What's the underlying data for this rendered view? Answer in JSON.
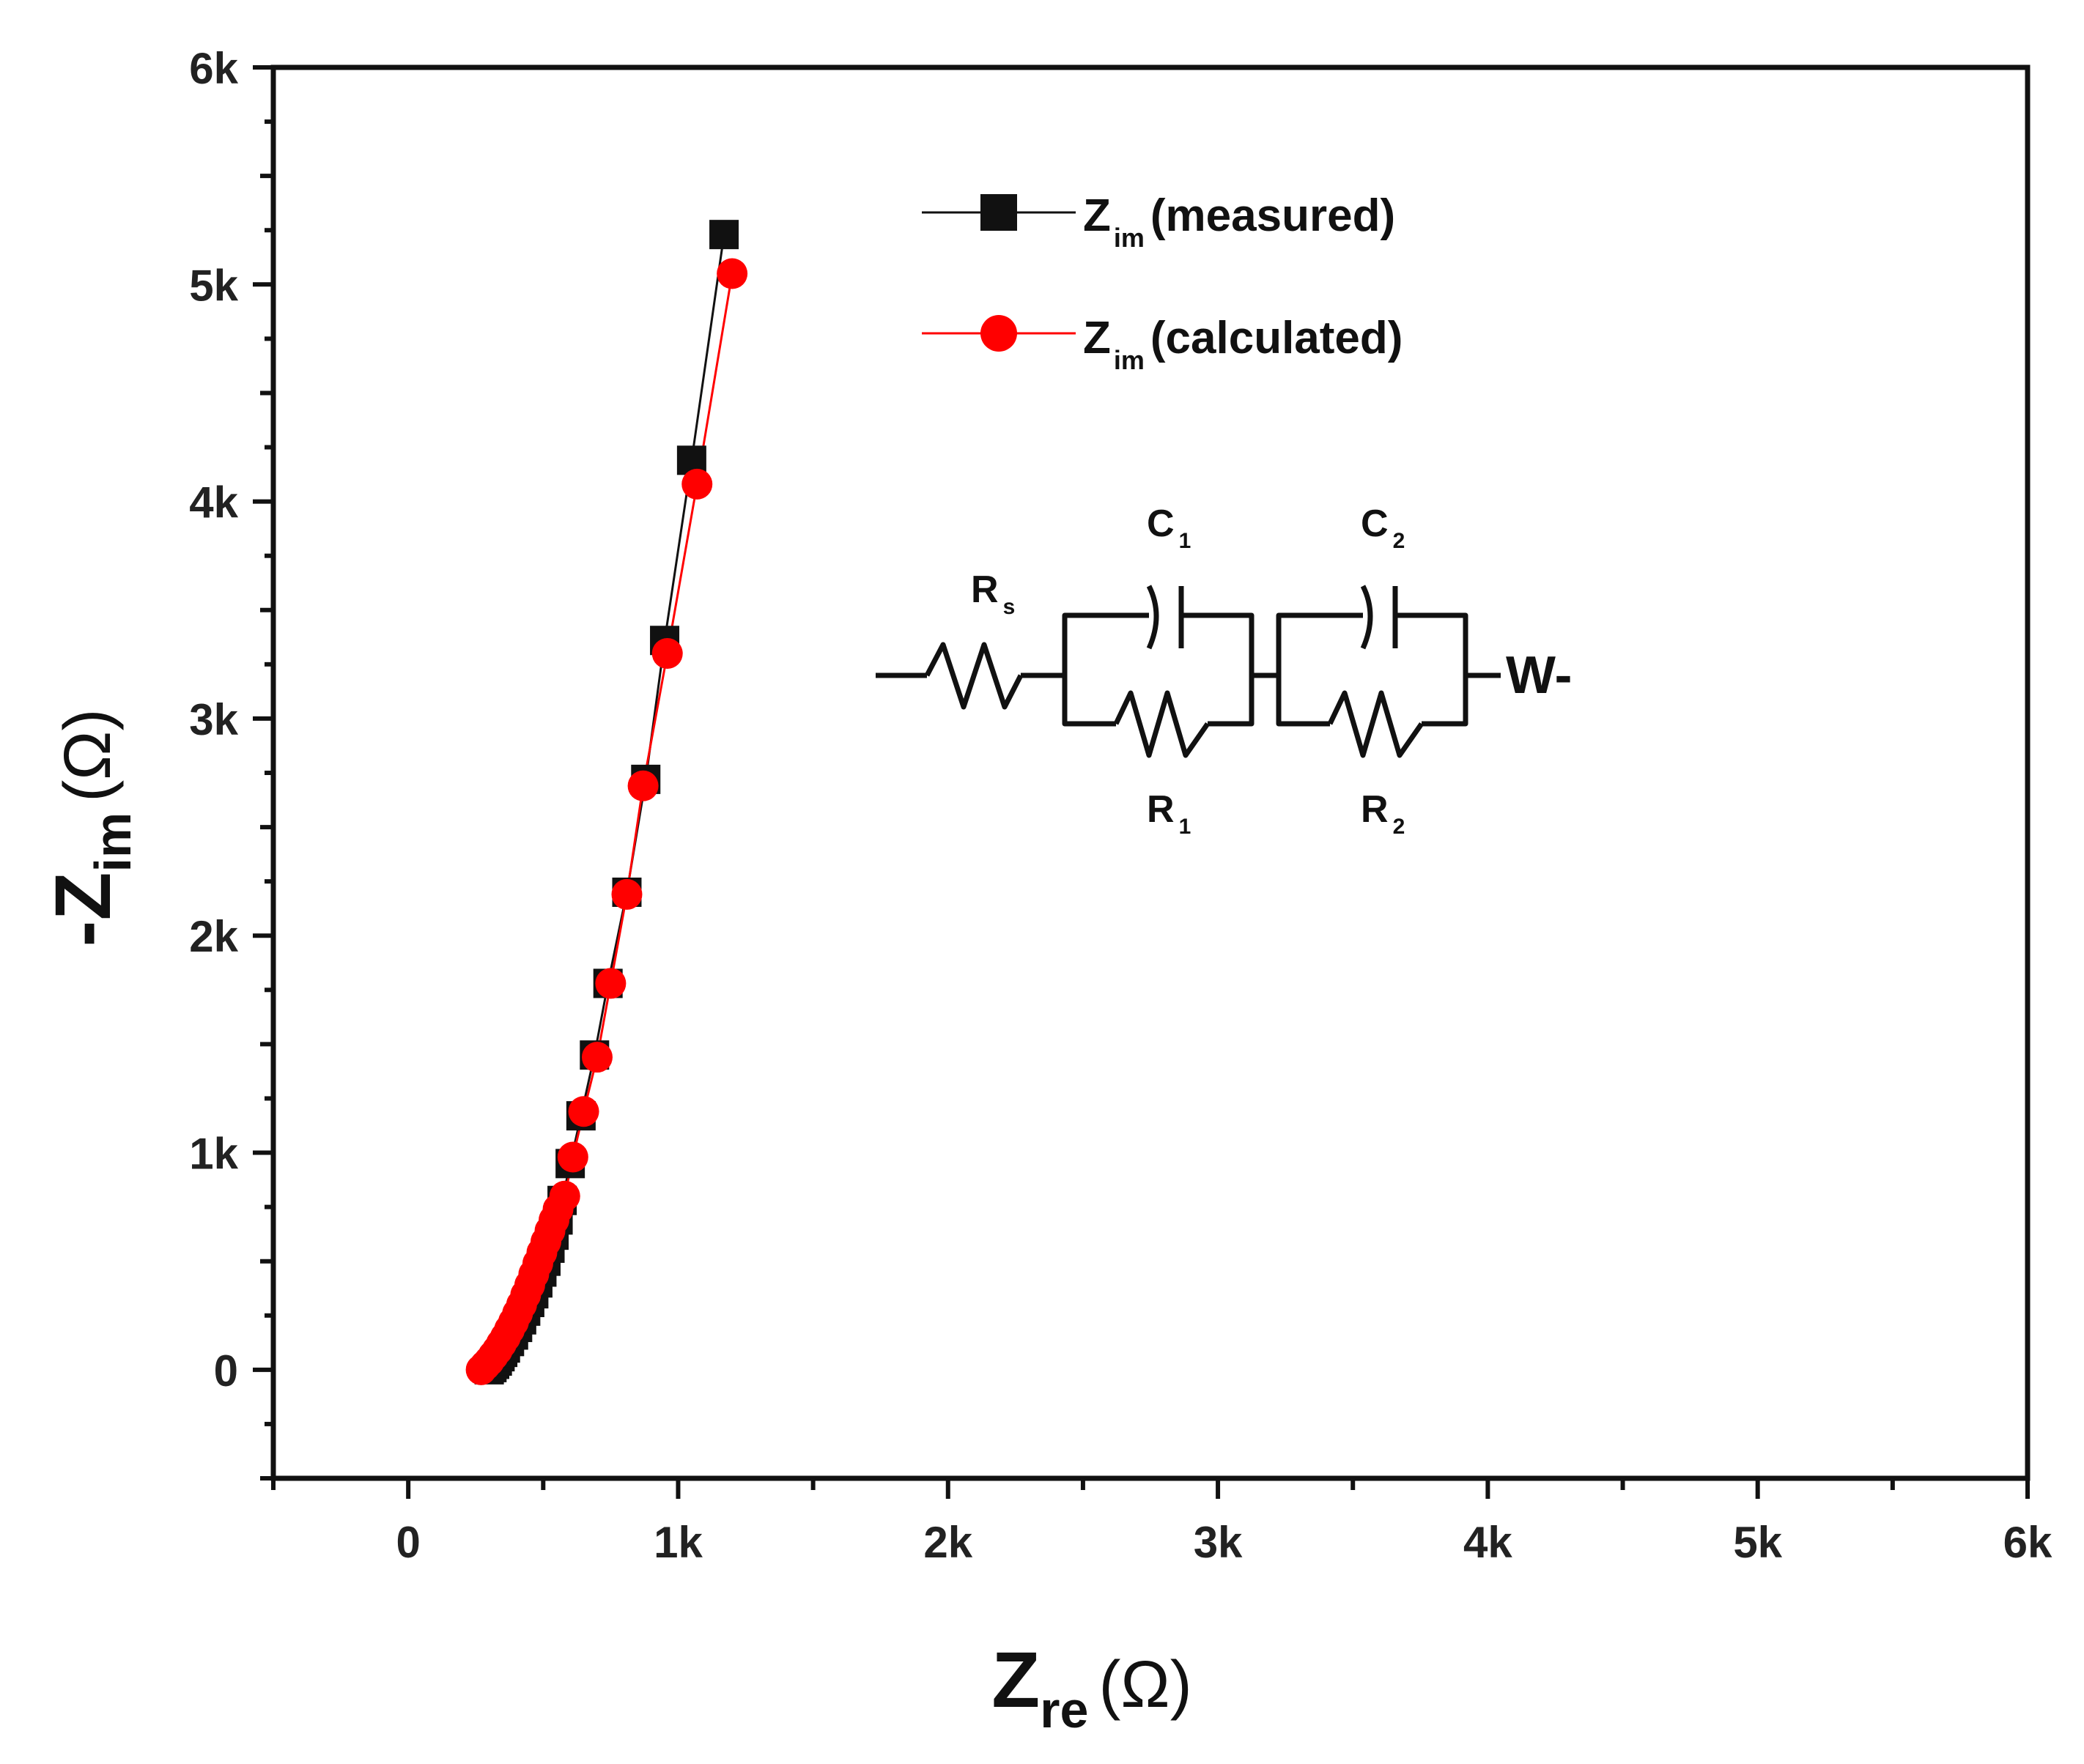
{
  "chart_data": {
    "type": "scatter",
    "xlim": [
      -500,
      6000
    ],
    "ylim": [
      -500,
      6000
    ],
    "x_ticks": [
      0,
      1000,
      2000,
      3000,
      4000,
      5000,
      6000
    ],
    "x_tick_labels": [
      "0",
      "1k",
      "2k",
      "3k",
      "4k",
      "5k",
      "6k"
    ],
    "y_ticks": [
      0,
      1000,
      2000,
      3000,
      4000,
      5000,
      6000
    ],
    "y_tick_labels": [
      "0",
      "1k",
      "2k",
      "3k",
      "4k",
      "5k",
      "6k"
    ],
    "xlabel": {
      "main": "Z",
      "sub": "re",
      "unit": "(Ω)"
    },
    "ylabel": {
      "main": "-Z",
      "sub": "im",
      "unit": "(Ω)"
    },
    "grid": false,
    "legend_position": "top-right",
    "series": [
      {
        "name": {
          "main": "Z",
          "sub": "im",
          "paren": "(measured)"
        },
        "marker": "square",
        "color": "#111111",
        "x": [
          300,
          310,
          320,
          330,
          340,
          350,
          360,
          375,
          390,
          405,
          420,
          435,
          450,
          465,
          480,
          495,
          510,
          525,
          540,
          555,
          570,
          600,
          640,
          690,
          740,
          810,
          880,
          950,
          1050,
          1170
        ],
        "y": [
          0,
          10,
          25,
          40,
          60,
          80,
          100,
          130,
          160,
          195,
          230,
          270,
          310,
          350,
          400,
          450,
          500,
          560,
          620,
          690,
          780,
          950,
          1170,
          1450,
          1780,
          2200,
          2720,
          3360,
          4190,
          5230
        ]
      },
      {
        "name": {
          "main": "Z",
          "sub": "im",
          "paren": "(calculated)"
        },
        "marker": "circle",
        "color": "#ff0000",
        "x": [
          270,
          285,
          300,
          315,
          330,
          345,
          360,
          375,
          390,
          405,
          420,
          435,
          450,
          465,
          480,
          495,
          510,
          525,
          540,
          555,
          580,
          610,
          650,
          700,
          750,
          810,
          870,
          960,
          1070,
          1200
        ],
        "y": [
          0,
          20,
          40,
          65,
          90,
          120,
          150,
          185,
          220,
          260,
          300,
          345,
          390,
          440,
          490,
          540,
          590,
          640,
          690,
          740,
          800,
          980,
          1190,
          1440,
          1780,
          2190,
          2690,
          3300,
          4080,
          5050
        ]
      }
    ]
  },
  "circuit": {
    "components": [
      {
        "type": "resistor",
        "label": "R",
        "sub": "s"
      },
      {
        "type": "capacitor",
        "label": "C",
        "sub": "1"
      },
      {
        "type": "resistor",
        "label": "R",
        "sub": "1"
      },
      {
        "type": "capacitor",
        "label": "C",
        "sub": "2"
      },
      {
        "type": "resistor",
        "label": "R",
        "sub": "2"
      },
      {
        "type": "warburg",
        "label": "W-"
      }
    ]
  }
}
